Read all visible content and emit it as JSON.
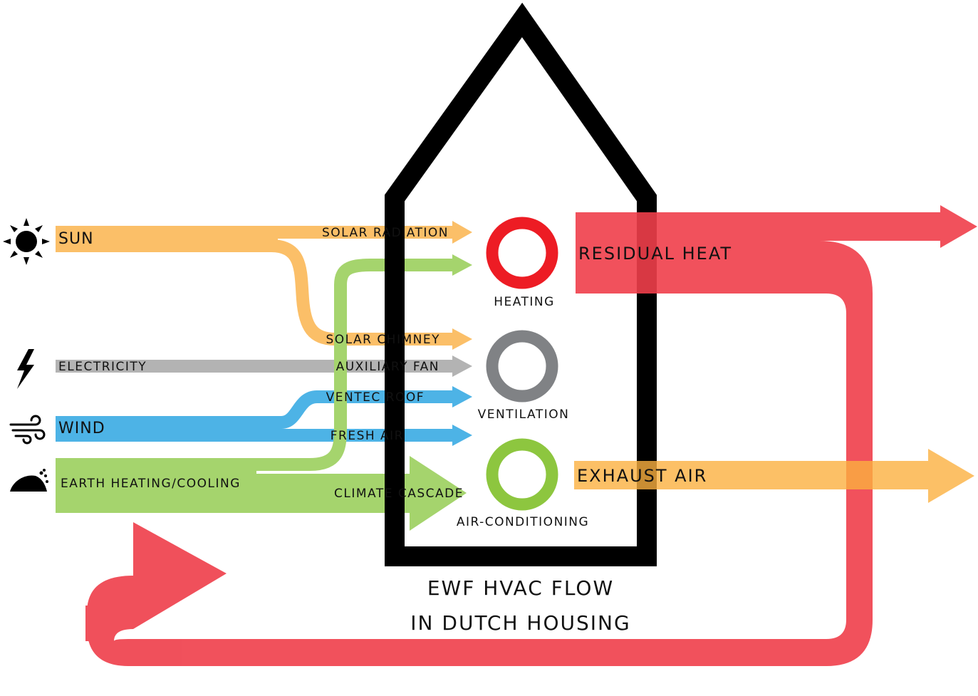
{
  "sources": [
    "SUN",
    "ELECTRICITY",
    "WIND",
    "EARTH HEATING/COOLING"
  ],
  "flows": [
    "SOLAR RADIATION",
    "SOLAR CHIMNEY",
    "AUXILIARY FAN",
    "VENTEC ROOF",
    "FRESH AIR",
    "CLIMATE CASCADE"
  ],
  "systems": [
    "HEATING",
    "VENTILATION",
    "AIR-CONDITIONING"
  ],
  "outputs": [
    "RESIDUAL HEAT",
    "EXHAUST AIR"
  ],
  "title": [
    "EWF HVAC FLOW",
    "IN DUTCH HOUSING"
  ]
}
